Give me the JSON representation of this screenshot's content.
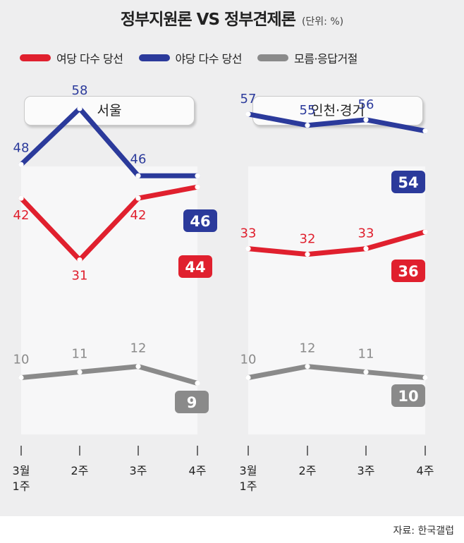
{
  "title": "정부지원론 VS 정부견제론",
  "unit": "(단위: %)",
  "legend": [
    {
      "label": "여당 다수 당선",
      "color": "#e0202e"
    },
    {
      "label": "야당 다수 당선",
      "color": "#2b3a9b"
    },
    {
      "label": "모름·응답거절",
      "color": "#8a8a8a"
    }
  ],
  "source": "자료: 한국갤럽",
  "chart_data": [
    {
      "type": "line",
      "title": "서울",
      "categories": [
        "3월\n1주",
        "2주",
        "3주",
        "4주"
      ],
      "series": [
        {
          "name": "야당 다수 당선",
          "color": "#2b3a9b",
          "values": [
            48,
            58,
            46,
            46
          ]
        },
        {
          "name": "여당 다수 당선",
          "color": "#e0202e",
          "values": [
            42,
            31,
            42,
            44
          ]
        },
        {
          "name": "모름·응답거절",
          "color": "#8a8a8a",
          "values": [
            10,
            11,
            12,
            9
          ]
        }
      ]
    },
    {
      "type": "line",
      "title": "인천·경기",
      "categories": [
        "3월\n1주",
        "2주",
        "3주",
        "4주"
      ],
      "series": [
        {
          "name": "야당 다수 당선",
          "color": "#2b3a9b",
          "values": [
            57,
            55,
            56,
            54
          ]
        },
        {
          "name": "여당 다수 당선",
          "color": "#e0202e",
          "values": [
            33,
            32,
            33,
            36
          ]
        },
        {
          "name": "모름·응답거절",
          "color": "#8a8a8a",
          "values": [
            10,
            12,
            11,
            10
          ]
        }
      ]
    }
  ]
}
